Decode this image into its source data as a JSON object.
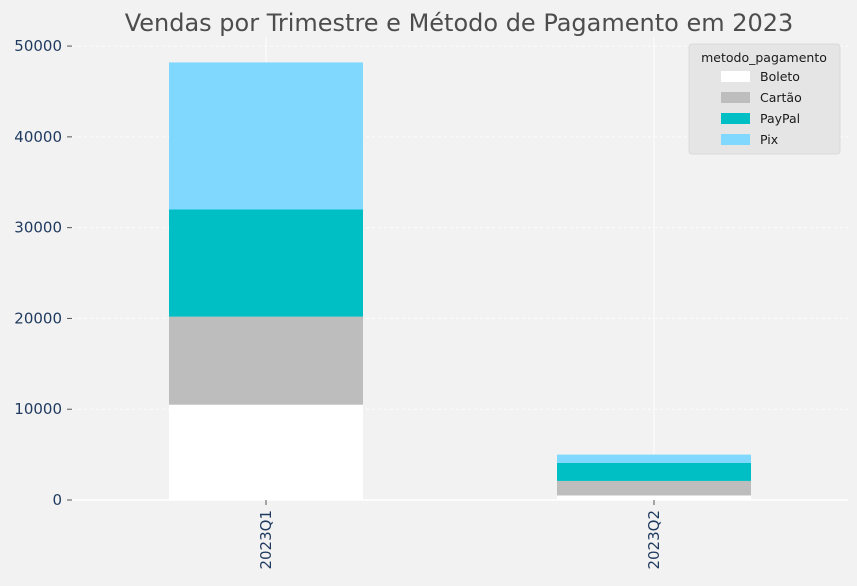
{
  "chart_data": {
    "type": "bar",
    "stacked": true,
    "title": "Vendas por Trimestre e Método de Pagamento em 2023",
    "xlabel": "",
    "ylabel": "",
    "categories": [
      "2023Q1",
      "2023Q2"
    ],
    "series": [
      {
        "name": "Boleto",
        "color": "#ffffff",
        "values": [
          10500,
          500
        ]
      },
      {
        "name": "Cartão",
        "color": "#bdbdbd",
        "values": [
          9700,
          1600
        ]
      },
      {
        "name": "PayPal",
        "color": "#00bfc4",
        "values": [
          11800,
          2000
        ]
      },
      {
        "name": "Pix",
        "color": "#80d8ff",
        "values": [
          16200,
          900
        ]
      }
    ],
    "ylim": [
      0,
      51000
    ],
    "yticks": [
      0,
      10000,
      20000,
      30000,
      40000,
      50000
    ],
    "grid": true,
    "legend_title": "metodo_pagamento",
    "legend_position": "top-right",
    "x_tick_rotation": "vertical"
  }
}
